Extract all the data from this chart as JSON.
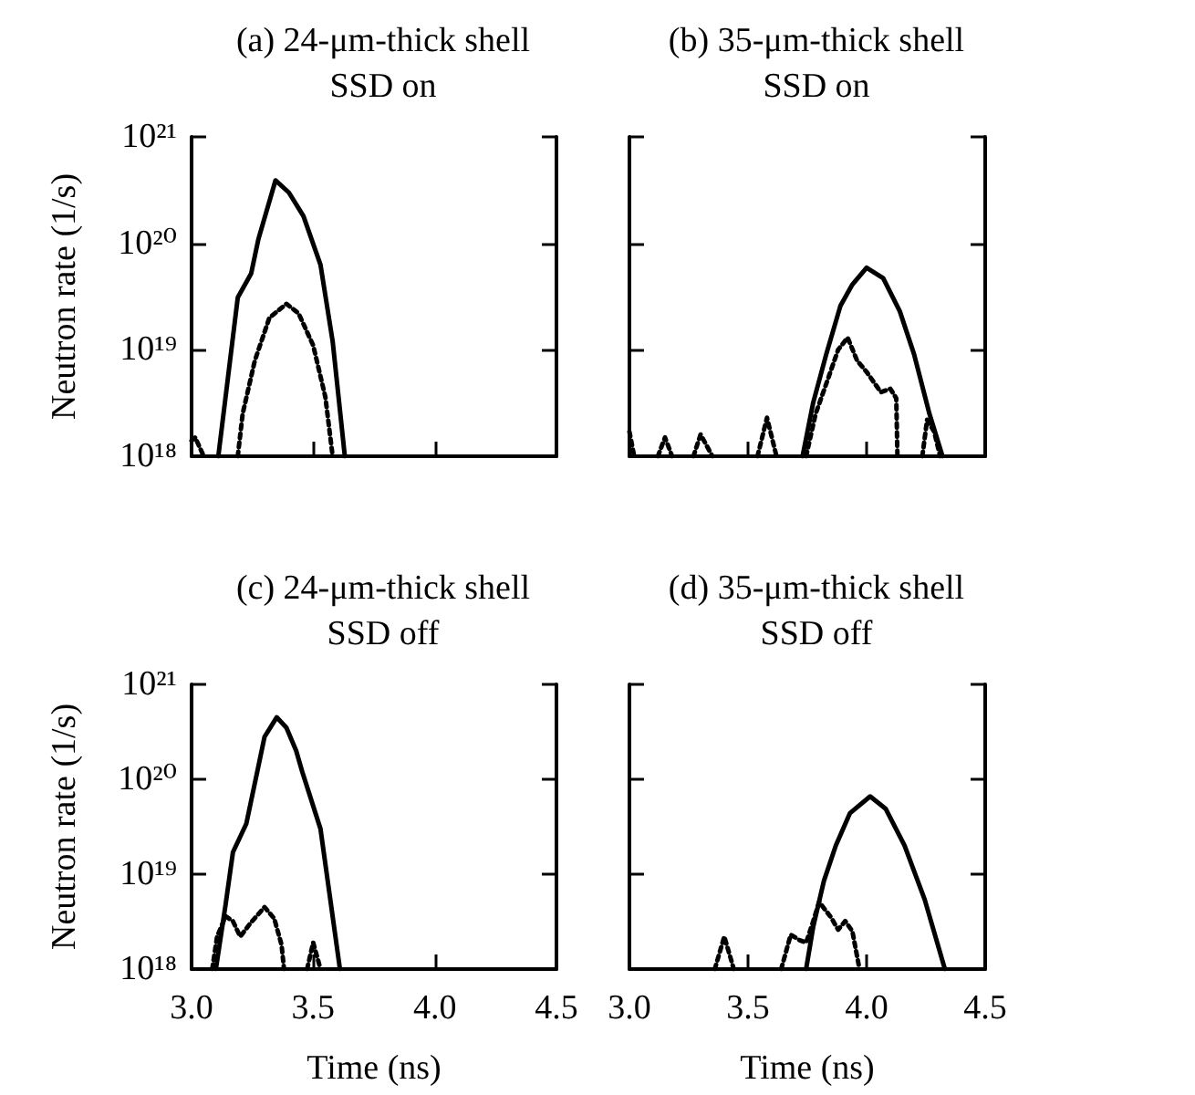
{
  "chart_data": [
    {
      "type": "line",
      "title": "(a) 24-μm-thick shell",
      "subtitle": "SSD on",
      "ylabel": "Neutron rate (1/s)",
      "log": "y",
      "tick_labels": "y",
      "xlim": [
        3.0,
        4.5
      ],
      "xticks": [
        {
          "value": 3.0,
          "label": null
        },
        {
          "value": 3.5,
          "label": null
        },
        {
          "value": 4.0,
          "label": null
        },
        {
          "value": 4.5,
          "label": null
        }
      ],
      "ylim": [
        1e+18,
        1e+21
      ],
      "yticks": [
        {
          "value": 1e+18,
          "label": "10¹⁸"
        },
        {
          "value": 1e+19,
          "label": "10¹⁹"
        },
        {
          "value": 1e+20,
          "label": "10²⁰"
        },
        {
          "value": 1e+21,
          "label": "10²¹"
        }
      ],
      "series": [
        {
          "color": "#000000",
          "line_style": "solid",
          "x": [
            3.11,
            3.19,
            3.245,
            3.275,
            3.345,
            3.4,
            3.46,
            3.53,
            3.58,
            3.63
          ],
          "values": [
            1e+18,
            3.1e+19,
            5.2e+19,
            1.1e+20,
            3.9e+20,
            3e+20,
            1.8e+20,
            6.3e+19,
            1.2e+19,
            1e+18
          ]
        },
        {
          "color": "#000000",
          "line_style": "dotted",
          "x": [
            3.0,
            3.015,
            3.05,
            3.12,
            3.19,
            3.21,
            3.26,
            3.32,
            3.39,
            3.44,
            3.5,
            3.55,
            3.58
          ],
          "values": [
            1.4e+18,
            1.5e+18,
            1e+18,
            null,
            1e+18,
            2.5e+18,
            7.9e+18,
            2e+19,
            2.7e+19,
            2.2e+19,
            1.1e+19,
            3.6e+18,
            1e+18
          ]
        }
      ]
    },
    {
      "type": "line",
      "title": "(b) 35-μm-thick shell",
      "subtitle": "SSD on",
      "log": "y",
      "tick_labels": false,
      "xlim": [
        3.0,
        4.5
      ],
      "xticks": [
        {
          "value": 3.0,
          "label": null
        },
        {
          "value": 3.5,
          "label": null
        },
        {
          "value": 4.0,
          "label": null
        },
        {
          "value": 4.5,
          "label": null
        }
      ],
      "ylim": [
        1e+18,
        1e+21
      ],
      "yticks": [
        {
          "value": 1e+18,
          "label": null
        },
        {
          "value": 1e+19,
          "label": null
        },
        {
          "value": 1e+20,
          "label": null
        },
        {
          "value": 1e+21,
          "label": null
        }
      ],
      "series": [
        {
          "color": "#000000",
          "line_style": "solid",
          "x": [
            3.73,
            3.775,
            3.83,
            3.89,
            3.94,
            4.0,
            4.07,
            4.14,
            4.2,
            4.265,
            4.32
          ],
          "values": [
            1e+18,
            3.2e+18,
            9.1e+18,
            2.6e+19,
            4.1e+19,
            5.9e+19,
            4.7e+19,
            2.3e+19,
            9.1e+18,
            2.5e+18,
            1e+18
          ]
        },
        {
          "color": "#000000",
          "line_style": "dotted",
          "x": [
            3.0,
            3.02,
            3.07,
            3.12,
            3.15,
            3.18,
            3.22,
            3.27,
            3.3,
            3.35,
            3.45,
            3.54,
            3.58,
            3.62,
            3.68,
            3.745,
            3.785,
            3.83,
            3.88,
            3.92,
            3.96,
            4.0,
            4.06,
            4.1,
            4.125,
            4.13,
            4.18,
            4.235,
            4.255,
            4.285,
            4.31
          ],
          "values": [
            1.7e+18,
            1e+18,
            null,
            1e+18,
            1.5e+18,
            1e+18,
            null,
            1e+18,
            1.6e+18,
            1e+18,
            null,
            1e+18,
            2.3e+18,
            1e+18,
            null,
            1e+18,
            2.5e+18,
            4.8e+18,
            1e+19,
            1.3e+19,
            7.9e+18,
            6.2e+18,
            4e+18,
            4.3e+18,
            3.5e+18,
            1e+18,
            null,
            1e+18,
            2.2e+18,
            1.7e+18,
            1e+18
          ]
        }
      ]
    },
    {
      "type": "line",
      "title": "(c) 24-μm-thick shell",
      "subtitle": "SSD off",
      "xlabel": "Time (ns)",
      "ylabel": "Neutron rate (1/s)",
      "log": "y",
      "xlim": [
        3.0,
        4.5
      ],
      "xticks": [
        {
          "value": 3.0,
          "label": "3.0"
        },
        {
          "value": 3.5,
          "label": "3.5"
        },
        {
          "value": 4.0,
          "label": "4.0"
        },
        {
          "value": 4.5,
          "label": "4.5"
        }
      ],
      "ylim": [
        1e+18,
        1e+21
      ],
      "yticks": [
        {
          "value": 1e+18,
          "label": "10¹⁸"
        },
        {
          "value": 1e+19,
          "label": "10¹⁹"
        },
        {
          "value": 1e+20,
          "label": "10²⁰"
        },
        {
          "value": 1e+21,
          "label": "10²¹"
        }
      ],
      "series": [
        {
          "color": "#000000",
          "line_style": "solid",
          "x": [
            3.1,
            3.14,
            3.17,
            3.225,
            3.27,
            3.3,
            3.35,
            3.39,
            3.43,
            3.455,
            3.53,
            3.61
          ],
          "values": [
            1e+18,
            4.8e+18,
            1.7e+19,
            3.4e+19,
            1.2e+20,
            2.8e+20,
            4.5e+20,
            3.5e+20,
            2e+20,
            1.2e+20,
            3e+19,
            1e+18
          ]
        },
        {
          "color": "#000000",
          "line_style": "dotted",
          "x": [
            3.085,
            3.105,
            3.14,
            3.17,
            3.2,
            3.24,
            3.3,
            3.34,
            3.37,
            3.38,
            3.43,
            3.475,
            3.5,
            3.53
          ],
          "values": [
            1e+18,
            2.2e+18,
            3.6e+18,
            3.2e+18,
            2.2e+18,
            3e+18,
            4.5e+18,
            3.4e+18,
            1.8e+18,
            1e+18,
            null,
            1e+18,
            1.9e+18,
            1e+18
          ]
        }
      ]
    },
    {
      "type": "line",
      "title": "(d) 35-μm-thick shell",
      "subtitle": "SSD off",
      "xlabel": "Time (ns)",
      "log": "y",
      "tick_labels": "x",
      "xlim": [
        3.0,
        4.5
      ],
      "xticks": [
        {
          "value": 3.0,
          "label": "3.0"
        },
        {
          "value": 3.5,
          "label": "3.5"
        },
        {
          "value": 4.0,
          "label": "4.0"
        },
        {
          "value": 4.5,
          "label": "4.5"
        }
      ],
      "ylim": [
        1e+18,
        1e+21
      ],
      "yticks": [
        {
          "value": 1e+18,
          "label": null
        },
        {
          "value": 1e+19,
          "label": null
        },
        {
          "value": 1e+20,
          "label": null
        },
        {
          "value": 1e+21,
          "label": null
        }
      ],
      "series": [
        {
          "color": "#000000",
          "line_style": "solid",
          "x": [
            3.745,
            3.775,
            3.82,
            3.87,
            3.93,
            4.015,
            4.08,
            4.16,
            4.245,
            4.33
          ],
          "values": [
            1e+18,
            2.8e+18,
            8.5e+18,
            2e+19,
            4.4e+19,
            6.6e+19,
            4.9e+19,
            2e+19,
            5.4e+18,
            1e+18
          ]
        },
        {
          "color": "#000000",
          "line_style": "dotted",
          "x": [
            3.36,
            3.4,
            3.44,
            3.54,
            3.64,
            3.68,
            3.72,
            3.745,
            3.775,
            3.8,
            3.85,
            3.88,
            3.91,
            3.94,
            3.97
          ],
          "values": [
            1e+18,
            2.2e+18,
            1e+18,
            null,
            1e+18,
            2.3e+18,
            2e+18,
            1.9e+18,
            3.2e+18,
            5.1e+18,
            3.5e+18,
            2.6e+18,
            3.2e+18,
            2.5e+18,
            1e+18
          ]
        }
      ]
    }
  ]
}
